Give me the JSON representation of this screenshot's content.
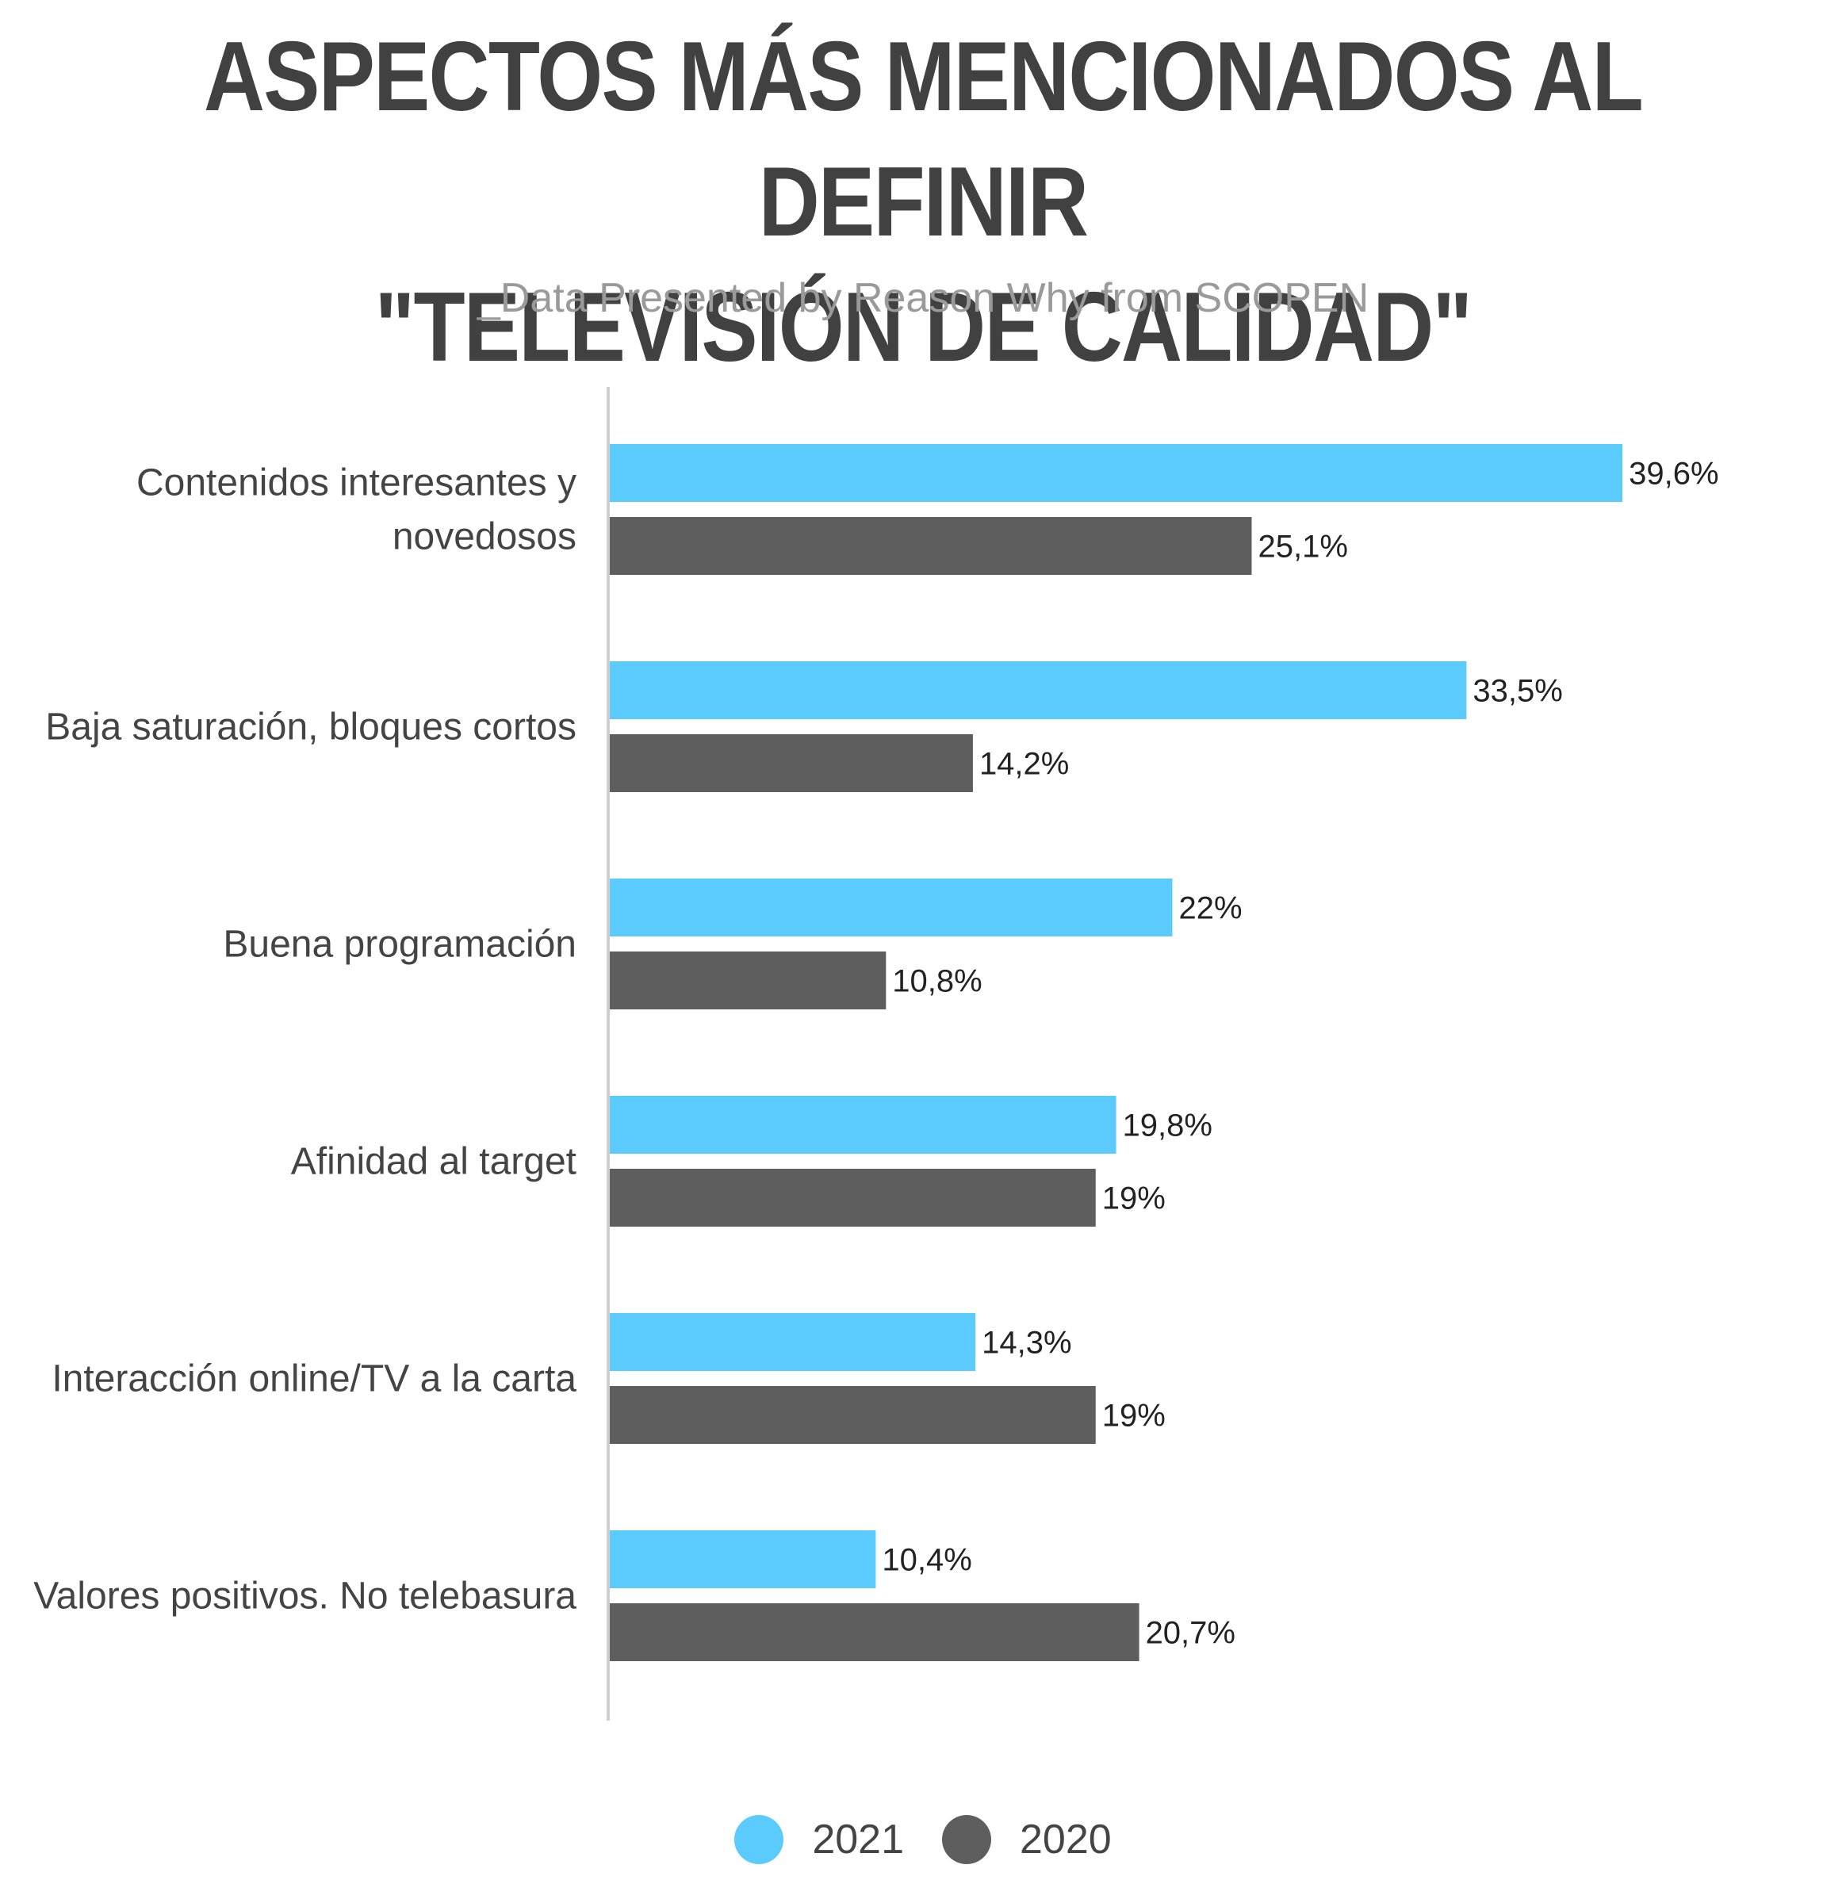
{
  "header": {
    "title_line1": "ASPECTOS MÁS MENCIONADOS AL DEFINIR",
    "title_line2": "\"TELEVISIÓN DE CALIDAD\"",
    "subtitle": "_Data Presented by Reason Why from SCOPEN"
  },
  "chart_data": {
    "type": "bar",
    "orientation": "horizontal",
    "title": "ASPECTOS MÁS MENCIONADOS AL DEFINIR \"TELEVISIÓN DE CALIDAD\"",
    "subtitle": "_Data Presented by Reason Why from SCOPEN",
    "categories": [
      [
        "Contenidos interesantes y",
        "novedosos"
      ],
      [
        "Baja saturación, bloques cortos"
      ],
      [
        "Buena programación"
      ],
      [
        "Afinidad al target"
      ],
      [
        "Interacción online/TV a la carta"
      ],
      [
        "Valores positivos. No telebasura"
      ]
    ],
    "series": [
      {
        "name": "2021",
        "color": "#5bcbfd",
        "values": [
          39.6,
          33.5,
          22,
          19.8,
          14.3,
          10.4
        ],
        "labels": [
          "39,6%",
          "33,5%",
          "22%",
          "19,8%",
          "14,3%",
          "10,4%"
        ]
      },
      {
        "name": "2020",
        "color": "#5e5e5e",
        "values": [
          25.1,
          14.2,
          10.8,
          19,
          19,
          20.7
        ],
        "labels": [
          "25,1%",
          "14,2%",
          "10,8%",
          "19%",
          "19%",
          "20,7%"
        ]
      }
    ],
    "xlim": [
      0,
      40
    ],
    "grid": false,
    "legend_position": "bottom-center"
  }
}
